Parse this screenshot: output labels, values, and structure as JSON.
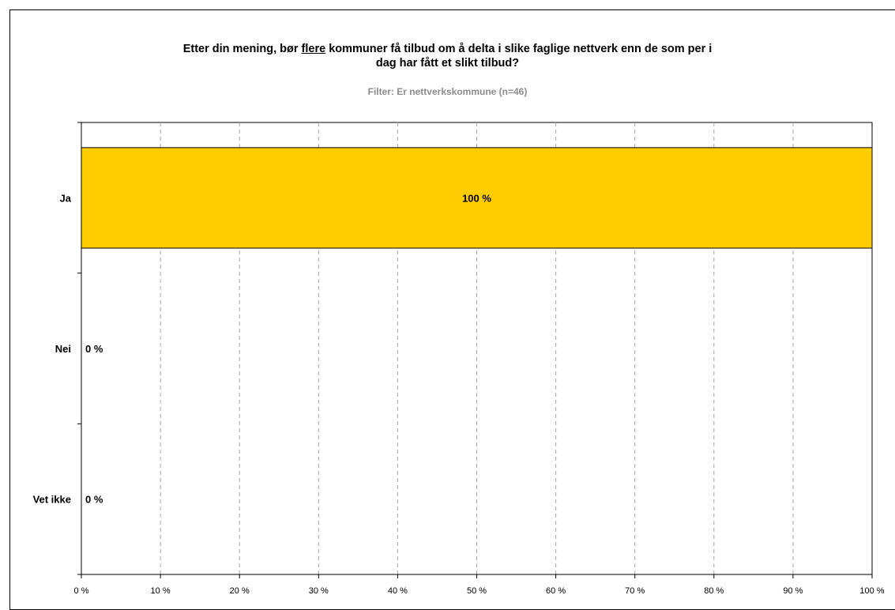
{
  "chart_data": {
    "type": "bar",
    "orientation": "horizontal",
    "title_parts": [
      {
        "text": "Etter din mening, bør ",
        "underline": false
      },
      {
        "text": "flere",
        "underline": true
      },
      {
        "text": " kommuner få tilbud om å delta i slike faglige nettverk enn de som per i",
        "underline": false
      }
    ],
    "title_line2": "dag har fått et slikt tilbud?",
    "subtitle": "Filter: Er nettverkskommune (n=46)",
    "categories": [
      "Ja",
      "Nei",
      "Vet ikke"
    ],
    "values": [
      100,
      0,
      0
    ],
    "data_labels": [
      "100 %",
      "0 %",
      "0 %"
    ],
    "xlim": [
      0,
      100
    ],
    "xticks": [
      0,
      10,
      20,
      30,
      40,
      50,
      60,
      70,
      80,
      90,
      100
    ],
    "xtick_labels": [
      "0 %",
      "10 %",
      "20 %",
      "30 %",
      "40 %",
      "50 %",
      "60 %",
      "70 %",
      "80 %",
      "90 %",
      "100 %"
    ],
    "grid": "vertical-dashed",
    "legend": "none",
    "bar_color": "#FFCC00",
    "grid_color": "#a6a6a6"
  }
}
